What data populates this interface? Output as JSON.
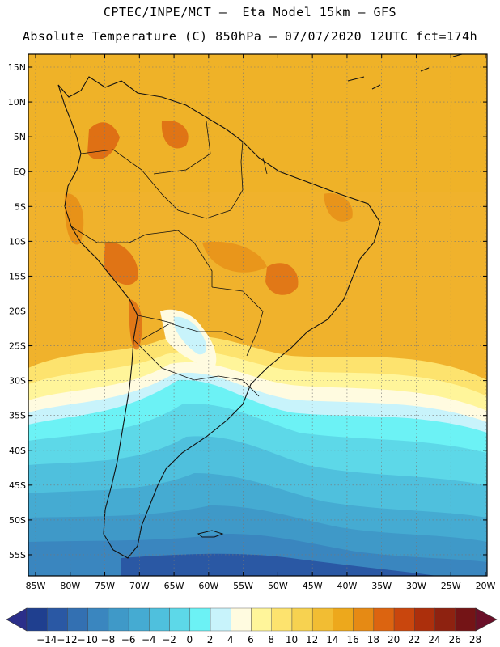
{
  "header": {
    "line1": "CPTEC/INPE/MCT –  Eta Model 15km – GFS",
    "line2": "Absolute Temperature (C) 850hPa – 07/07/2020 12UTC fct=174h"
  },
  "map": {
    "lat_labels": [
      "15N",
      "10N",
      "5N",
      "EQ",
      "5S",
      "10S",
      "15S",
      "20S",
      "25S",
      "30S",
      "35S",
      "40S",
      "45S",
      "50S",
      "55S"
    ],
    "lon_labels": [
      "85W",
      "80W",
      "75W",
      "70W",
      "65W",
      "60W",
      "55W",
      "50W",
      "45W",
      "40W",
      "35W",
      "30W",
      "25W",
      "20W"
    ]
  },
  "colorbar": {
    "labels": [
      "-14",
      "-12",
      "-10",
      "-8",
      "-6",
      "-4",
      "-2",
      "0",
      "2",
      "4",
      "6",
      "8",
      "10",
      "12",
      "14",
      "16",
      "18",
      "20",
      "22",
      "24",
      "26",
      "28"
    ],
    "colors": [
      "#1f3f8f",
      "#2a58a4",
      "#3370b2",
      "#3a86bf",
      "#3f99c8",
      "#45abd2",
      "#4fc0dd",
      "#5dd8e8",
      "#6cf2f5",
      "#c8f3fb",
      "#fffbe0",
      "#fff59a",
      "#fde36e",
      "#f7d250",
      "#f2bd33",
      "#eda81c",
      "#e68a14",
      "#dc6410",
      "#c9460d",
      "#ac2f0c",
      "#8e2210",
      "#741416"
    ],
    "end_left": "#2b2f8a",
    "end_right": "#6a0f28"
  }
}
